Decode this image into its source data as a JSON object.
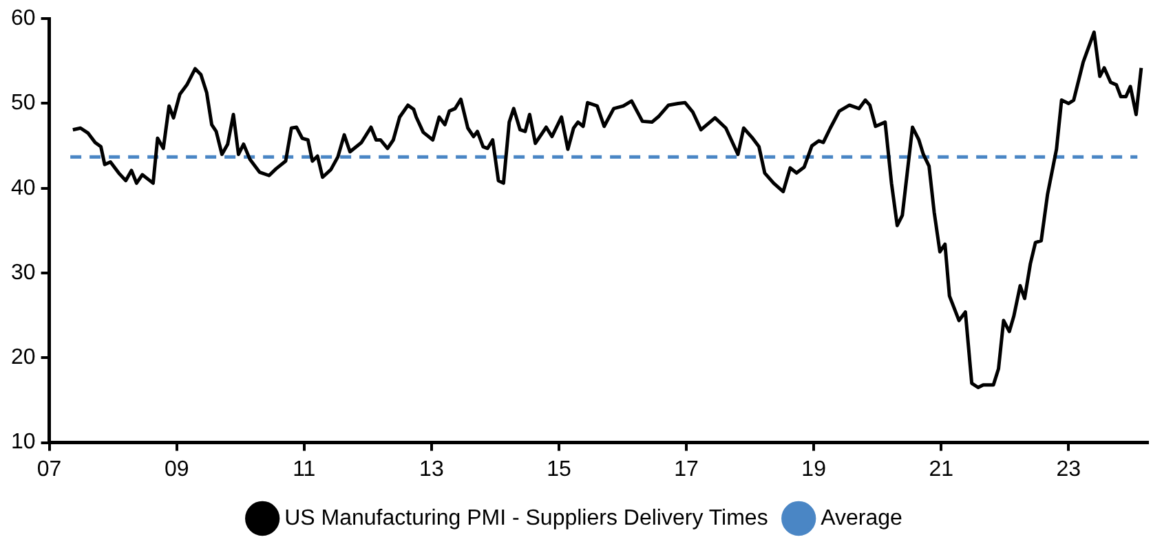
{
  "chart_data": {
    "type": "line",
    "xlim": [
      2007,
      2024.25
    ],
    "xticks": [
      {
        "value": 2007,
        "label": "07"
      },
      {
        "value": 2009,
        "label": "09"
      },
      {
        "value": 2011,
        "label": "11"
      },
      {
        "value": 2013,
        "label": "13"
      },
      {
        "value": 2015,
        "label": "15"
      },
      {
        "value": 2017,
        "label": "17"
      },
      {
        "value": 2019,
        "label": "19"
      },
      {
        "value": 2021,
        "label": "21"
      },
      {
        "value": 2023,
        "label": "23"
      }
    ],
    "ylim": [
      10,
      60
    ],
    "yticks": [
      10,
      20,
      30,
      40,
      50,
      60
    ],
    "grid": false,
    "legend": "bottom",
    "marker": "none",
    "series": [
      {
        "name": "US Manufacturing PMI - Suppliers Delivery Times",
        "color": "#000000",
        "line_style": "solid",
        "x": [
          2007.37,
          2007.49,
          2007.61,
          2007.72,
          2007.81,
          2007.87,
          2007.96,
          2008.09,
          2008.2,
          2008.29,
          2008.37,
          2008.46,
          2008.63,
          2008.7,
          2008.79,
          2008.88,
          2008.95,
          2009.05,
          2009.16,
          2009.29,
          2009.38,
          2009.47,
          2009.55,
          2009.62,
          2009.71,
          2009.8,
          2009.89,
          2009.97,
          2010.05,
          2010.15,
          2010.3,
          2010.45,
          2010.56,
          2010.71,
          2010.8,
          2010.88,
          2010.97,
          2011.06,
          2011.13,
          2011.21,
          2011.29,
          2011.42,
          2011.53,
          2011.63,
          2011.72,
          2011.9,
          2012.05,
          2012.13,
          2012.2,
          2012.31,
          2012.4,
          2012.5,
          2012.63,
          2012.72,
          2012.76,
          2012.87,
          2013.02,
          2013.12,
          2013.21,
          2013.28,
          2013.37,
          2013.46,
          2013.57,
          2013.66,
          2013.72,
          2013.81,
          2013.88,
          2013.96,
          2014.05,
          2014.13,
          2014.22,
          2014.29,
          2014.39,
          2014.47,
          2014.54,
          2014.63,
          2014.8,
          2014.89,
          2015.04,
          2015.14,
          2015.23,
          2015.3,
          2015.38,
          2015.45,
          2015.6,
          2015.71,
          2015.86,
          2016.01,
          2016.14,
          2016.31,
          2016.46,
          2016.57,
          2016.72,
          2016.87,
          2016.98,
          2017.1,
          2017.23,
          2017.45,
          2017.62,
          2017.81,
          2017.9,
          2018.03,
          2018.14,
          2018.23,
          2018.37,
          2018.52,
          2018.63,
          2018.73,
          2018.85,
          2018.97,
          2019.08,
          2019.15,
          2019.26,
          2019.4,
          2019.56,
          2019.71,
          2019.81,
          2019.88,
          2019.97,
          2020.12,
          2020.22,
          2020.31,
          2020.39,
          2020.55,
          2020.65,
          2020.72,
          2020.81,
          2020.89,
          2020.98,
          2021.06,
          2021.13,
          2021.28,
          2021.38,
          2021.48,
          2021.58,
          2021.66,
          2021.82,
          2021.9,
          2021.98,
          2022.07,
          2022.14,
          2022.24,
          2022.31,
          2022.4,
          2022.48,
          2022.57,
          2022.67,
          2022.81,
          2022.89,
          2023.0,
          2023.08,
          2023.23,
          2023.4,
          2023.49,
          2023.56,
          2023.66,
          2023.75,
          2023.82,
          2023.9,
          2023.97,
          2024.06,
          2024.14
        ],
        "values": [
          46.9,
          47.1,
          46.5,
          45.4,
          44.9,
          42.8,
          43.1,
          41.8,
          40.9,
          42.1,
          40.6,
          41.6,
          40.6,
          45.9,
          44.7,
          49.7,
          48.3,
          51.1,
          52.2,
          54.1,
          53.4,
          51.3,
          47.5,
          46.7,
          44.0,
          45.2,
          48.7,
          44.0,
          45.2,
          43.4,
          41.9,
          41.5,
          42.3,
          43.2,
          47.1,
          47.2,
          45.9,
          45.7,
          43.2,
          43.8,
          41.3,
          42.2,
          43.7,
          46.3,
          44.3,
          45.4,
          47.2,
          45.7,
          45.7,
          44.7,
          45.7,
          48.4,
          49.8,
          49.3,
          48.4,
          46.6,
          45.7,
          48.4,
          47.5,
          49.1,
          49.4,
          50.5,
          47.1,
          46.1,
          46.7,
          44.9,
          44.7,
          45.7,
          40.9,
          40.6,
          47.8,
          49.4,
          46.9,
          46.7,
          48.7,
          45.3,
          47.2,
          46.1,
          48.4,
          44.6,
          47.1,
          47.8,
          47.3,
          50.1,
          49.7,
          47.3,
          49.4,
          49.7,
          50.3,
          47.9,
          47.8,
          48.5,
          49.8,
          50.0,
          50.1,
          49.0,
          46.9,
          48.3,
          47.1,
          44.0,
          47.1,
          46.0,
          44.9,
          41.8,
          40.6,
          39.6,
          42.4,
          41.8,
          42.5,
          45.0,
          45.6,
          45.4,
          47.1,
          49.1,
          49.8,
          49.4,
          50.4,
          49.8,
          47.3,
          47.8,
          40.6,
          35.6,
          36.8,
          47.2,
          45.7,
          44.0,
          42.6,
          37.2,
          32.5,
          33.4,
          27.3,
          24.4,
          25.4,
          17.0,
          16.5,
          16.8,
          16.8,
          18.7,
          24.4,
          23.1,
          24.9,
          28.5,
          27.0,
          31.1,
          33.6,
          33.8,
          39.3,
          44.6,
          50.4,
          50.0,
          50.4,
          54.9,
          58.4,
          53.2,
          54.2,
          52.5,
          52.2,
          50.8,
          50.8,
          52.0,
          48.7,
          54.2
        ]
      },
      {
        "name": "Average",
        "color": "#4a86c5",
        "line_style": "dashed",
        "x": [
          2007.33,
          2024.08
        ],
        "values": [
          43.7,
          43.7
        ]
      }
    ]
  }
}
